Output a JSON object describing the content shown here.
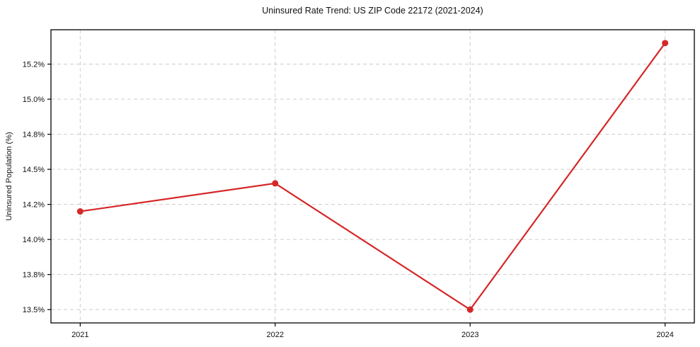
{
  "chart_data": {
    "type": "line",
    "title": "Uninsured Rate Trend: US ZIP Code 22172 (2021-2024)",
    "xlabel": "",
    "ylabel": "Uninsured Population (%)",
    "x": [
      2021,
      2022,
      2023,
      2024
    ],
    "values": [
      14.2,
      14.4,
      13.5,
      15.4
    ],
    "value_unit": "%",
    "xlim": [
      2020.85,
      2024.15
    ],
    "ylim": [
      13.405,
      15.495
    ],
    "xticks": [
      {
        "v": 2021,
        "label": "2021"
      },
      {
        "v": 2022,
        "label": "2022"
      },
      {
        "v": 2023,
        "label": "2023"
      },
      {
        "v": 2024,
        "label": "2024"
      }
    ],
    "yticks": [
      {
        "v": 13.5,
        "label": "13.5%"
      },
      {
        "v": 13.75,
        "label": "13.8%"
      },
      {
        "v": 14.0,
        "label": "14.0%"
      },
      {
        "v": 14.25,
        "label": "14.2%"
      },
      {
        "v": 14.5,
        "label": "14.5%"
      },
      {
        "v": 14.75,
        "label": "14.8%"
      },
      {
        "v": 15.0,
        "label": "15.0%"
      },
      {
        "v": 15.25,
        "label": "15.2%"
      }
    ],
    "grid": true,
    "grid_style": "dashed",
    "legend": false,
    "colors": {
      "line": "#d62728",
      "marker": "#d62728",
      "grid": "#cccccc",
      "spine": "#000000",
      "text": "#111111",
      "background": "#ffffff"
    }
  }
}
